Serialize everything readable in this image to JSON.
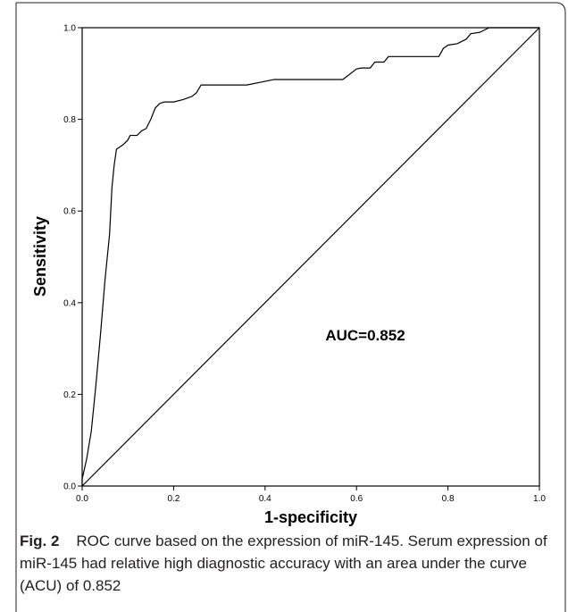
{
  "chart_data": {
    "type": "line",
    "title": "",
    "xlabel": "1-specificity",
    "ylabel": "Sensitivity",
    "xlim": [
      0.0,
      1.0
    ],
    "ylim": [
      0.0,
      1.0
    ],
    "xticks": [
      "0.0",
      "0.2",
      "0.4",
      "0.6",
      "0.8",
      "1.0"
    ],
    "yticks": [
      "0.0",
      "0.2",
      "0.4",
      "0.6",
      "0.8",
      "1.0"
    ],
    "annotation": "AUC=0.852",
    "grid": false,
    "legend": "none",
    "series": [
      {
        "points": [
          [
            0.0,
            0.0
          ],
          [
            0.0,
            0.015
          ],
          [
            0.01,
            0.06
          ],
          [
            0.02,
            0.12
          ],
          [
            0.03,
            0.22
          ],
          [
            0.04,
            0.33
          ],
          [
            0.05,
            0.45
          ],
          [
            0.06,
            0.55
          ],
          [
            0.065,
            0.65
          ],
          [
            0.07,
            0.7
          ],
          [
            0.075,
            0.735
          ],
          [
            0.09,
            0.745
          ],
          [
            0.1,
            0.755
          ],
          [
            0.105,
            0.765
          ],
          [
            0.12,
            0.765
          ],
          [
            0.13,
            0.775
          ],
          [
            0.14,
            0.78
          ],
          [
            0.15,
            0.8
          ],
          [
            0.16,
            0.825
          ],
          [
            0.17,
            0.835
          ],
          [
            0.18,
            0.838
          ],
          [
            0.2,
            0.838
          ],
          [
            0.22,
            0.843
          ],
          [
            0.24,
            0.85
          ],
          [
            0.25,
            0.858
          ],
          [
            0.26,
            0.875
          ],
          [
            0.28,
            0.875
          ],
          [
            0.36,
            0.875
          ],
          [
            0.39,
            0.881
          ],
          [
            0.42,
            0.887
          ],
          [
            0.57,
            0.887
          ],
          [
            0.6,
            0.91
          ],
          [
            0.61,
            0.912
          ],
          [
            0.63,
            0.912
          ],
          [
            0.64,
            0.925
          ],
          [
            0.66,
            0.925
          ],
          [
            0.67,
            0.937
          ],
          [
            0.78,
            0.937
          ],
          [
            0.79,
            0.955
          ],
          [
            0.8,
            0.962
          ],
          [
            0.82,
            0.965
          ],
          [
            0.84,
            0.975
          ],
          [
            0.85,
            0.987
          ],
          [
            0.87,
            0.99
          ],
          [
            0.89,
            1.0
          ],
          [
            1.0,
            1.0
          ]
        ]
      },
      {
        "points": [
          [
            0.0,
            0.0
          ],
          [
            1.0,
            1.0
          ]
        ]
      }
    ]
  },
  "caption": {
    "label": "Fig. 2",
    "text": "ROC curve based on the expression of miR-145. Serum expression of miR-145 had relative high diagnostic accuracy with an area under the curve (ACU) of 0.852"
  },
  "colors": {
    "line": "#000000",
    "frame": "#231f20",
    "caption": "#231f20"
  }
}
